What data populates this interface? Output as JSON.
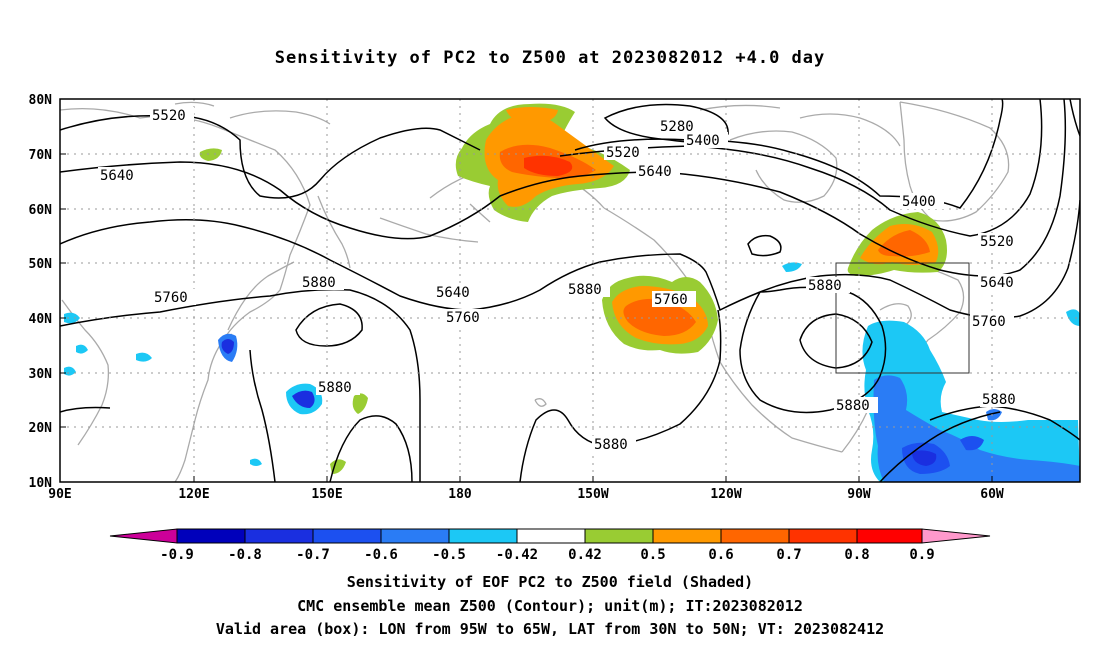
{
  "title": "Sensitivity of PC2 to Z500 at 2023082012 +4.0 day",
  "map": {
    "lat_labels": [
      "80N",
      "70N",
      "60N",
      "50N",
      "40N",
      "30N",
      "20N",
      "10N"
    ],
    "lon_labels": [
      "90E",
      "120E",
      "150E",
      "180",
      "150W",
      "120W",
      "90W",
      "60W"
    ],
    "contour_labels": [
      "5520",
      "5640",
      "5760",
      "5880",
      "5640",
      "5760",
      "5880",
      "5880",
      "5520",
      "5640",
      "5400",
      "5280",
      "5880",
      "5760",
      "5880",
      "5400",
      "5520",
      "5640",
      "5760",
      "5880",
      "5880"
    ],
    "valid_box": {
      "lon_west": "95W",
      "lon_east": "65W",
      "lat_south": "30N",
      "lat_north": "50N"
    },
    "colors": {
      "negative": [
        "#cc0099",
        "#0000bb",
        "#1a2fe0",
        "#1c50f0",
        "#2a7cf5",
        "#1cc8f5"
      ],
      "neutral": "#ffffff",
      "positive": [
        "#99cc33",
        "#ff9900",
        "#ff6600",
        "#ff3300",
        "#ff0000",
        "#ff99cc"
      ],
      "coastline": "#aaaaaa",
      "contour": "#000000"
    }
  },
  "colorbar": {
    "labels": [
      "-0.9",
      "-0.8",
      "-0.7",
      "-0.6",
      "-0.5",
      "-0.42",
      "0.42",
      "0.5",
      "0.6",
      "0.7",
      "0.8",
      "0.9"
    ]
  },
  "captions": [
    "Sensitivity of EOF PC2 to Z500 field (Shaded)",
    "CMC ensemble mean Z500 (Contour); unit(m); IT:2023082012",
    "Valid area (box): LON from 95W to 65W, LAT from 30N to 50N; VT: 2023082412"
  ]
}
